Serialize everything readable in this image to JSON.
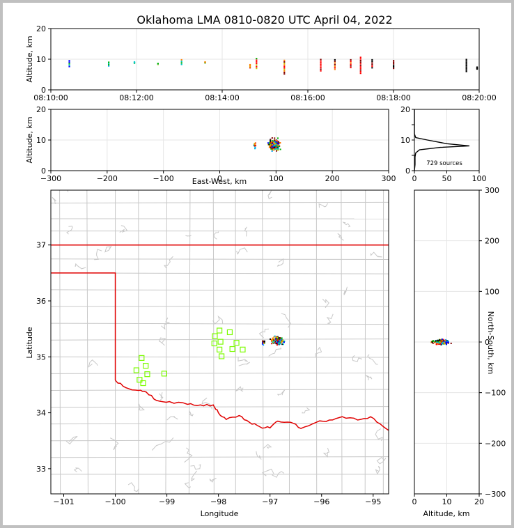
{
  "figure": {
    "title": "Oklahoma LMA 0810-0820 UTC April 04, 2022"
  },
  "colors": {
    "frame": "#c0c0c0",
    "county_lines": "#c8c8c8",
    "state_border": "#e00000",
    "stations": "#7cfc00",
    "histogram": "#000000",
    "grid": "#e6e6e6",
    "time_colormap": [
      "#0000ff",
      "#00a0ff",
      "#00c8c8",
      "#00b000",
      "#c8c800",
      "#ff8000",
      "#ff0000",
      "#800000",
      "#000000"
    ]
  },
  "chart_data": [
    {
      "id": "time-altitude",
      "type": "scatter",
      "ylabel": "Altitude, km",
      "xlabel": "",
      "x_tick_labels": [
        "08:10:00",
        "08:12:00",
        "08:14:00",
        "08:16:00",
        "08:18:00",
        "08:20:00"
      ],
      "x_ticks_minutes": [
        0,
        2,
        4,
        6,
        8,
        10
      ],
      "xlim_minutes": [
        0,
        10
      ],
      "ylim": [
        0,
        20
      ],
      "y_ticks": [
        0,
        10,
        20
      ],
      "clusters": [
        {
          "t": 0.43,
          "z0": 7.6,
          "z1": 9.5
        },
        {
          "t": 1.35,
          "z0": 7.8,
          "z1": 9.0
        },
        {
          "t": 1.95,
          "z0": 8.7,
          "z1": 9.1
        },
        {
          "t": 2.5,
          "z0": 8.3,
          "z1": 8.6
        },
        {
          "t": 3.05,
          "z0": 8.3,
          "z1": 9.8
        },
        {
          "t": 3.6,
          "z0": 8.8,
          "z1": 9.1
        },
        {
          "t": 4.65,
          "z0": 7.2,
          "z1": 8.2
        },
        {
          "t": 4.8,
          "z0": 7.0,
          "z1": 10.2
        },
        {
          "t": 5.45,
          "z0": 5.2,
          "z1": 9.6
        },
        {
          "t": 6.3,
          "z0": 6.2,
          "z1": 9.9
        },
        {
          "t": 6.63,
          "z0": 6.7,
          "z1": 9.8
        },
        {
          "t": 7.0,
          "z0": 7.3,
          "z1": 9.8
        },
        {
          "t": 7.23,
          "z0": 5.4,
          "z1": 10.6
        },
        {
          "t": 7.5,
          "z0": 7.2,
          "z1": 9.8
        },
        {
          "t": 8.0,
          "z0": 7.0,
          "z1": 9.5
        },
        {
          "t": 9.7,
          "z0": 6.0,
          "z1": 9.9
        },
        {
          "t": 9.95,
          "z0": 6.8,
          "z1": 7.4
        }
      ]
    },
    {
      "id": "ew-altitude",
      "type": "scatter",
      "xlabel": "East-West, km",
      "ylabel": "Altitude, km",
      "xlim": [
        -300,
        300
      ],
      "x_ticks": [
        -300,
        -200,
        -100,
        0,
        100,
        200,
        300
      ],
      "ylim": [
        0,
        20
      ],
      "y_ticks": [
        0,
        10,
        20
      ],
      "clusters": [
        {
          "x": 62,
          "z": 8.2,
          "sx": 2.0,
          "sz": 0.8,
          "n": 12
        },
        {
          "x": 97,
          "z": 8.4,
          "sx": 7.0,
          "sz": 1.2,
          "n": 230
        }
      ]
    },
    {
      "id": "altitude-histogram",
      "type": "line",
      "xlim": [
        0,
        100
      ],
      "x_ticks": [
        0,
        50,
        100
      ],
      "ylim": [
        0,
        20
      ],
      "y_ticks": [
        0,
        5,
        10,
        15,
        20
      ],
      "annotation": "729 sources",
      "profile": [
        {
          "count": 0,
          "z": 20
        },
        {
          "count": 0,
          "z": 12
        },
        {
          "count": 2,
          "z": 10.8
        },
        {
          "count": 20,
          "z": 10.0
        },
        {
          "count": 50,
          "z": 8.8
        },
        {
          "count": 85,
          "z": 8.1
        },
        {
          "count": 40,
          "z": 7.6
        },
        {
          "count": 8,
          "z": 6.8
        },
        {
          "count": 2,
          "z": 5.8
        },
        {
          "count": 1,
          "z": 4.5
        },
        {
          "count": 1,
          "z": 2.0
        },
        {
          "count": 0,
          "z": 0
        }
      ]
    },
    {
      "id": "plan-view",
      "type": "scatter",
      "xlabel": "Longitude",
      "ylabel": "Latitude",
      "xlim": [
        -101.25,
        -94.7
      ],
      "x_ticks": [
        -101,
        -100,
        -99,
        -98,
        -97,
        -96,
        -95
      ],
      "ylim": [
        32.55,
        37.98
      ],
      "y_ticks": [
        33,
        34,
        35,
        36,
        37
      ],
      "stations": [
        [
          -97.98,
          35.47
        ],
        [
          -97.78,
          35.44
        ],
        [
          -98.07,
          35.37
        ],
        [
          -97.96,
          35.27
        ],
        [
          -98.08,
          35.24
        ],
        [
          -97.65,
          35.25
        ],
        [
          -97.98,
          35.13
        ],
        [
          -97.73,
          35.14
        ],
        [
          -97.53,
          35.13
        ],
        [
          -97.94,
          35.01
        ],
        [
          -99.49,
          34.98
        ],
        [
          -99.41,
          34.84
        ],
        [
          -99.59,
          34.76
        ],
        [
          -99.38,
          34.69
        ],
        [
          -99.05,
          34.7
        ],
        [
          -99.53,
          34.59
        ],
        [
          -99.46,
          34.53
        ]
      ],
      "clusters": [
        {
          "lon": -97.13,
          "lat": 35.25,
          "slon": 0.02,
          "slat": 0.03,
          "n": 12
        },
        {
          "lon": -96.85,
          "lat": 35.29,
          "slon": 0.07,
          "slat": 0.04,
          "n": 230
        }
      ]
    },
    {
      "id": "altitude-ns",
      "type": "scatter",
      "xlabel": "Altitude, km",
      "ylabel": "North-South, km",
      "xlim": [
        0,
        20
      ],
      "x_ticks": [
        0,
        10,
        20
      ],
      "ylim": [
        -300,
        300
      ],
      "y_ticks": [
        -300,
        -200,
        -100,
        0,
        100,
        200,
        300
      ],
      "clusters": [
        {
          "z": 8.4,
          "y": 0,
          "sz": 1.4,
          "sy": 3.0,
          "n": 200
        },
        {
          "z": 5.6,
          "y": 0,
          "sz": 0.3,
          "sy": 1.5,
          "n": 8
        }
      ]
    }
  ]
}
